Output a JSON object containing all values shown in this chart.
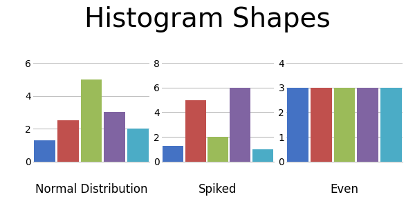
{
  "title": "Histogram Shapes",
  "title_fontsize": 28,
  "title_fontweight": "normal",
  "subplots": [
    {
      "label": "Normal Distribution",
      "values": [
        1.3,
        2.5,
        5.0,
        3.0,
        2.0
      ],
      "ylim": [
        0,
        6
      ],
      "yticks": [
        0,
        2,
        4,
        6
      ]
    },
    {
      "label": "Spiked",
      "values": [
        1.3,
        5.0,
        2.0,
        6.0,
        1.0
      ],
      "ylim": [
        0,
        8
      ],
      "yticks": [
        0,
        2,
        4,
        6,
        8
      ]
    },
    {
      "label": "Even",
      "values": [
        3.0,
        3.0,
        3.0,
        3.0,
        3.0
      ],
      "ylim": [
        0,
        4
      ],
      "yticks": [
        0,
        1,
        2,
        3,
        4
      ]
    }
  ],
  "bar_colors": [
    "#4472C4",
    "#C0504D",
    "#9BBB59",
    "#8064A2",
    "#4BACC6"
  ],
  "background_color": "#FFFFFF",
  "grid_color": "#C0C0C0",
  "label_fontsize": 12,
  "tick_fontsize": 10
}
